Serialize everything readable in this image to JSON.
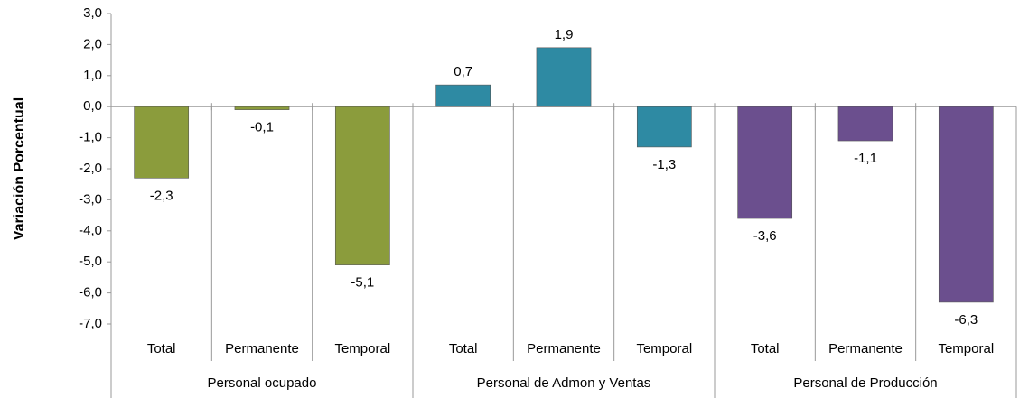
{
  "chart_data": {
    "type": "bar",
    "y_axis_label": "Variación Porcentual",
    "categories": [
      "Total",
      "Permanente",
      "Temporal",
      "Total",
      "Permanente",
      "Temporal",
      "Total",
      "Permanente",
      "Temporal"
    ],
    "groups": [
      "Personal ocupado",
      "Personal de Admon y Ventas",
      "Personal de Producción"
    ],
    "values": [
      -2.3,
      -0.1,
      -5.1,
      0.7,
      1.9,
      -1.3,
      -3.6,
      -1.1,
      -6.3
    ],
    "value_labels": [
      "-2,3",
      "-0,1",
      "-5,1",
      "0,7",
      "1,9",
      "-1,3",
      "-3,6",
      "-1,1",
      "-6,3"
    ],
    "colors": [
      "#8b9c3c",
      "#8b9c3c",
      "#8b9c3c",
      "#2e8aa3",
      "#2e8aa3",
      "#2e8aa3",
      "#6b4f8e",
      "#6b4f8e",
      "#6b4f8e"
    ],
    "ylim": [
      -7,
      3
    ],
    "yticks": [
      {
        "value": 3,
        "label": "3,0"
      },
      {
        "value": 2,
        "label": "2,0"
      },
      {
        "value": 1,
        "label": "1,0"
      },
      {
        "value": 0,
        "label": "0,0"
      },
      {
        "value": -1,
        "label": "-1,0"
      },
      {
        "value": -2,
        "label": "-2,0"
      },
      {
        "value": -3,
        "label": "-3,0"
      },
      {
        "value": -4,
        "label": "-4,0"
      },
      {
        "value": -5,
        "label": "-5,0"
      },
      {
        "value": -6,
        "label": "-6,0"
      },
      {
        "value": -7,
        "label": "-7,0"
      }
    ]
  }
}
